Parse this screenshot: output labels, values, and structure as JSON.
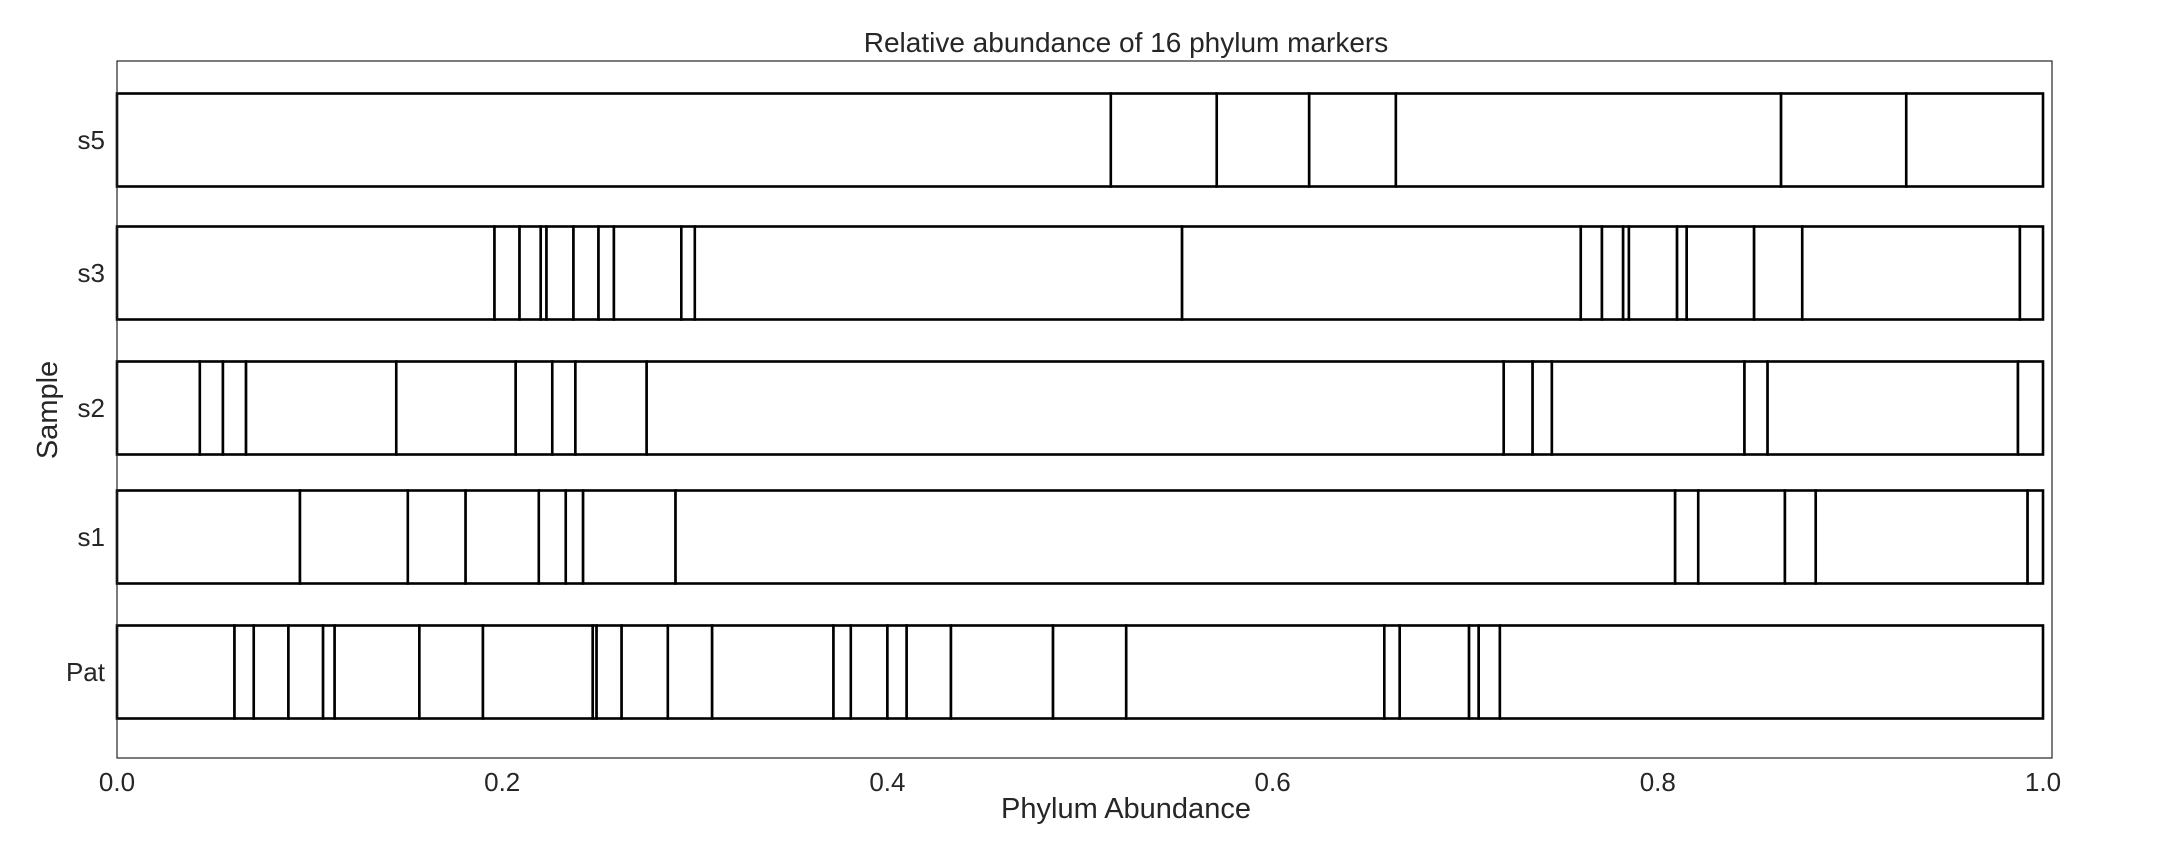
{
  "chart_data": {
    "type": "bar",
    "orientation": "horizontal",
    "stacked": true,
    "title": "Relative abundance of 16 phylum markers",
    "xlabel": "Phylum Abundance",
    "ylabel": "Sample",
    "xlim": [
      0.0,
      1.05
    ],
    "xticks": [
      "0.0",
      "0.2",
      "0.4",
      "0.6",
      "0.8",
      "1.0"
    ],
    "grid": false,
    "legend": "none",
    "colors": {
      "segment_fill": "#ffffff",
      "segment_stroke": "#000000",
      "axes_frame": "#262626"
    },
    "categories": [
      "Pat",
      "s1",
      "s2",
      "s3",
      "s5"
    ],
    "segment_boundaries": {
      "Pat": [
        0.0,
        0.061,
        0.071,
        0.089,
        0.107,
        0.113,
        0.157,
        0.19,
        0.247,
        0.249,
        0.262,
        0.286,
        0.309,
        0.372,
        0.381,
        0.4,
        0.41,
        0.433,
        0.486,
        0.524,
        0.658,
        0.666,
        0.702,
        0.707,
        0.718,
        1.0
      ],
      "s1": [
        0.0,
        0.095,
        0.151,
        0.181,
        0.219,
        0.233,
        0.242,
        0.29,
        0.809,
        0.821,
        0.866,
        0.882,
        0.992,
        1.0
      ],
      "s2": [
        0.0,
        0.043,
        0.055,
        0.067,
        0.145,
        0.207,
        0.226,
        0.238,
        0.275,
        0.72,
        0.735,
        0.745,
        0.845,
        0.857,
        0.987,
        1.0
      ],
      "s3": [
        0.0,
        0.196,
        0.209,
        0.22,
        0.223,
        0.237,
        0.25,
        0.258,
        0.293,
        0.3,
        0.553,
        0.76,
        0.771,
        0.782,
        0.785,
        0.81,
        0.815,
        0.85,
        0.875,
        0.988,
        1.0
      ],
      "s5": [
        0.0,
        0.516,
        0.571,
        0.619,
        0.664,
        0.864,
        0.929,
        1.0
      ]
    }
  }
}
